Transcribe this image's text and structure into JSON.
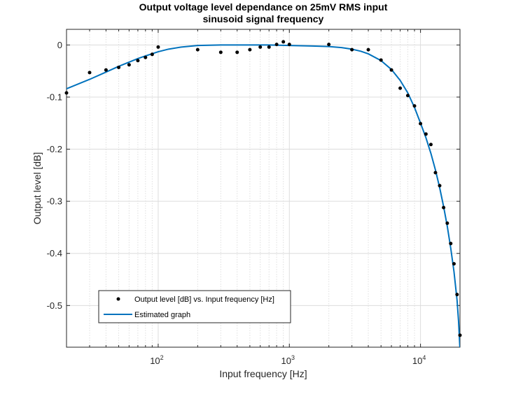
{
  "chart_data": {
    "type": "scatter",
    "title_lines": [
      "Output voltage level dependance on 25mV RMS input",
      "sinusoid signal frequency"
    ],
    "xlabel": "Input frequency [Hz]",
    "ylabel": "Output level [dB]",
    "x_scale": "log",
    "xlim": [
      20,
      20000
    ],
    "ylim": [
      -0.58,
      0.03
    ],
    "grid": true,
    "minor_grid_x": true,
    "x_ticks": [
      {
        "value": 100,
        "base": "10",
        "exp": "2"
      },
      {
        "value": 1000,
        "base": "10",
        "exp": "3"
      },
      {
        "value": 10000,
        "base": "10",
        "exp": "4"
      }
    ],
    "y_ticks": [
      {
        "value": 0,
        "label": "0"
      },
      {
        "value": -0.1,
        "label": "-0.1"
      },
      {
        "value": -0.2,
        "label": "-0.2"
      },
      {
        "value": -0.3,
        "label": "-0.3"
      },
      {
        "value": -0.4,
        "label": "-0.4"
      },
      {
        "value": -0.5,
        "label": "-0.5"
      }
    ],
    "legend_position": "lower-left",
    "series": [
      {
        "name": "Output level [dB] vs. Input frequency [Hz]",
        "kind": "markers",
        "color": "#000000",
        "x": [
          20,
          30,
          40,
          50,
          60,
          70,
          80,
          90,
          100,
          200,
          300,
          400,
          500,
          600,
          700,
          800,
          900,
          1000,
          2000,
          3000,
          4000,
          5000,
          6000,
          7000,
          8000,
          9000,
          10000,
          11000,
          12000,
          13000,
          14000,
          15000,
          16000,
          17000,
          18000,
          19000,
          20000
        ],
        "y": [
          -0.092,
          -0.053,
          -0.048,
          -0.043,
          -0.038,
          -0.03,
          -0.024,
          -0.018,
          -0.004,
          -0.009,
          -0.014,
          -0.014,
          -0.009,
          -0.004,
          -0.004,
          0.001,
          0.006,
          0.001,
          0.001,
          -0.009,
          -0.009,
          -0.029,
          -0.048,
          -0.083,
          -0.097,
          -0.117,
          -0.151,
          -0.171,
          -0.191,
          -0.245,
          -0.27,
          -0.312,
          -0.342,
          -0.381,
          -0.42,
          -0.479,
          -0.557
        ]
      },
      {
        "name": "Estimated graph",
        "kind": "line",
        "color": "#0072BD",
        "x": [
          20,
          30,
          40,
          50,
          60,
          70,
          80,
          100,
          120,
          150,
          200,
          300,
          500,
          700,
          1000,
          1500,
          2000,
          2500,
          3000,
          3500,
          4000,
          5000,
          6000,
          7000,
          8000,
          9000,
          10000,
          11000,
          12000,
          13000,
          14000,
          15000,
          16000,
          17000,
          18000,
          19000,
          19500,
          20000
        ],
        "y": [
          -0.084,
          -0.066,
          -0.052,
          -0.041,
          -0.033,
          -0.026,
          -0.021,
          -0.013,
          -0.008,
          -0.004,
          -0.001,
          0.0,
          0.0,
          0.0,
          -0.001,
          -0.002,
          -0.003,
          -0.005,
          -0.008,
          -0.012,
          -0.017,
          -0.03,
          -0.047,
          -0.068,
          -0.092,
          -0.12,
          -0.15,
          -0.178,
          -0.208,
          -0.24,
          -0.274,
          -0.31,
          -0.348,
          -0.39,
          -0.435,
          -0.49,
          -0.53,
          -0.585
        ]
      }
    ]
  }
}
